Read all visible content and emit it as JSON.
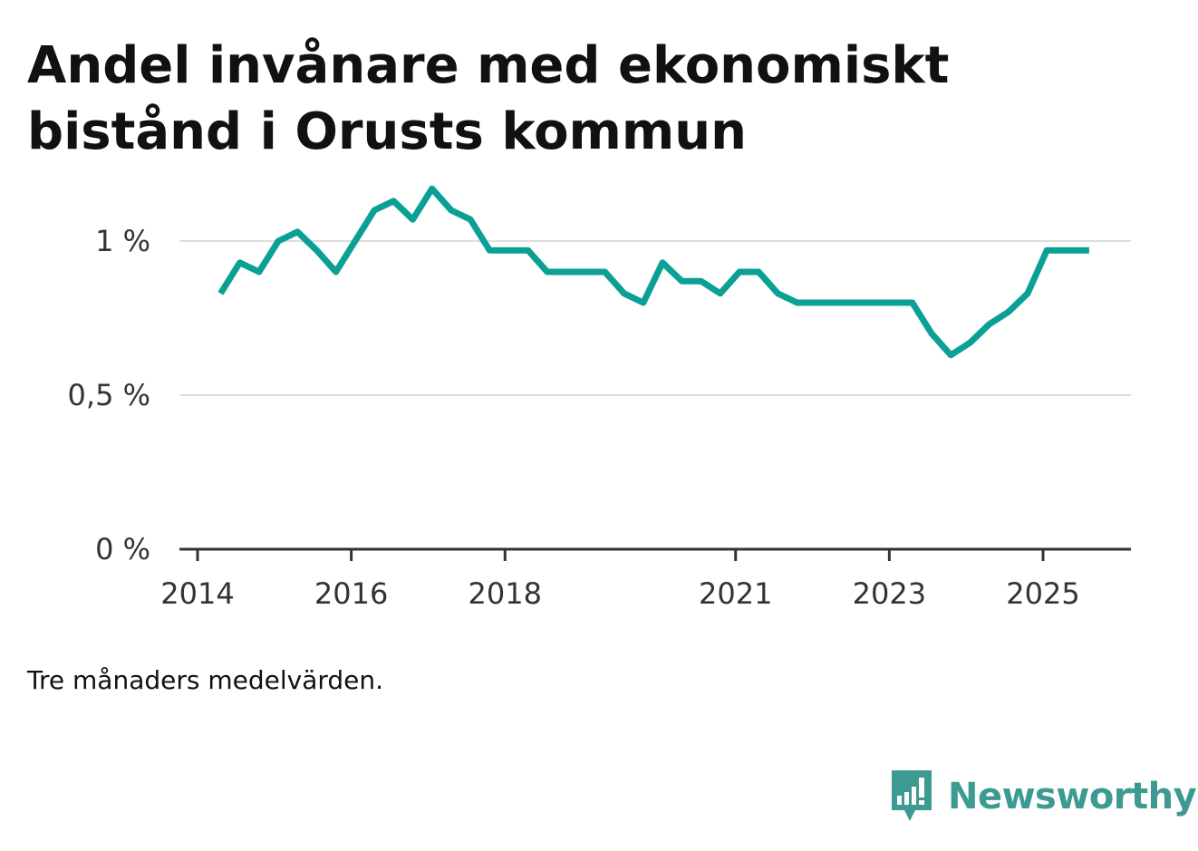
{
  "title_lines": [
    "Andel invånare med ekonomiskt",
    "bistånd i Orusts kommun"
  ],
  "note": "Tre månaders medelvärden.",
  "brand": {
    "name": "Newsworthy",
    "icon": "newsworthy-logo-icon",
    "color": "#3d9a93"
  },
  "colors": {
    "line": "#0aa096",
    "grid": "#dddddd",
    "axis": "#333333"
  },
  "chart_data": {
    "type": "line",
    "title": "Andel invånare med ekonomiskt bistånd i Orusts kommun",
    "xlabel": "",
    "ylabel": "",
    "ylim": [
      0,
      1.2
    ],
    "y_ticks": [
      {
        "value": 0,
        "label": "0 %"
      },
      {
        "value": 0.5,
        "label": "0,5 %"
      },
      {
        "value": 1,
        "label": "1 %"
      }
    ],
    "x_ticks": [
      {
        "value": 2014.0,
        "label": "2014"
      },
      {
        "value": 2016.0,
        "label": "2016"
      },
      {
        "value": 2018.0,
        "label": "2018"
      },
      {
        "value": 2021.0,
        "label": "2021"
      },
      {
        "value": 2023.0,
        "label": "2023"
      },
      {
        "value": 2025.0,
        "label": "2025"
      }
    ],
    "xlim": [
      2013.8,
      2026.2
    ],
    "grid": true,
    "series": [
      {
        "name": "Andel invånare med ekonomiskt bistånd",
        "x": [
          2014.3,
          2014.55,
          2014.8,
          2015.05,
          2015.3,
          2015.55,
          2015.8,
          2016.05,
          2016.3,
          2016.55,
          2016.8,
          2017.05,
          2017.3,
          2017.55,
          2017.8,
          2018.05,
          2018.3,
          2018.55,
          2018.8,
          2019.05,
          2019.3,
          2019.55,
          2019.8,
          2020.05,
          2020.3,
          2020.55,
          2020.8,
          2021.05,
          2021.3,
          2021.55,
          2021.8,
          2022.05,
          2022.3,
          2022.55,
          2022.8,
          2023.05,
          2023.3,
          2023.55,
          2023.8,
          2024.05,
          2024.3,
          2024.55,
          2024.8,
          2025.05,
          2025.3,
          2025.6
        ],
        "values": [
          0.83,
          0.93,
          0.9,
          1.0,
          1.03,
          0.97,
          0.9,
          1.0,
          1.1,
          1.13,
          1.07,
          1.17,
          1.1,
          1.07,
          0.97,
          0.97,
          0.97,
          0.9,
          0.9,
          0.9,
          0.9,
          0.83,
          0.8,
          0.93,
          0.87,
          0.87,
          0.83,
          0.9,
          0.9,
          0.83,
          0.8,
          0.8,
          0.8,
          0.8,
          0.8,
          0.8,
          0.8,
          0.7,
          0.63,
          0.67,
          0.73,
          0.77,
          0.83,
          0.97,
          0.97,
          0.97
        ]
      }
    ]
  }
}
